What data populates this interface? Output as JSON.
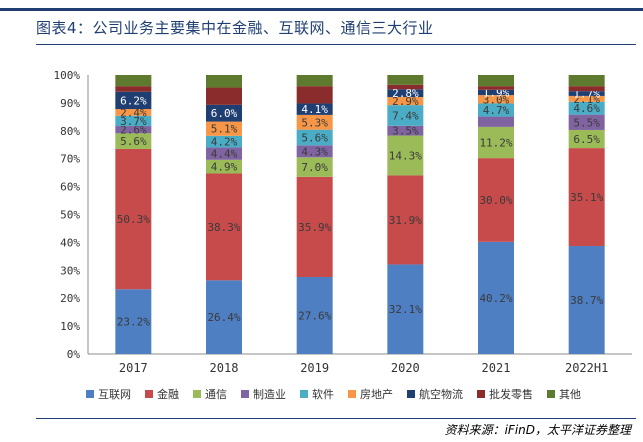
{
  "header": {
    "title": "图表4：公司业务主要集中在金融、互联网、通信三大行业"
  },
  "footer": {
    "source": "资料来源：iFinD，太平洋证券整理"
  },
  "chart_data": {
    "type": "bar",
    "stacked": true,
    "title": "图表4：公司业务主要集中在金融、互联网、通信三大行业",
    "xlabel": "",
    "ylabel": "",
    "ylim": [
      0,
      100
    ],
    "yticks": [
      "0%",
      "10%",
      "20%",
      "30%",
      "40%",
      "50%",
      "60%",
      "70%",
      "80%",
      "90%",
      "100%"
    ],
    "categories": [
      "2017",
      "2018",
      "2019",
      "2020",
      "2021",
      "2022H1"
    ],
    "legend_position": "bottom",
    "series": [
      {
        "name": "互联网",
        "color": "#4f7fc3",
        "values": [
          23.2,
          26.4,
          27.6,
          32.1,
          40.2,
          38.7
        ],
        "labels": [
          "23.2%",
          "26.4%",
          "27.6%",
          "32.1%",
          "40.2%",
          "38.7%"
        ]
      },
      {
        "name": "金融",
        "color": "#c74b4b",
        "values": [
          50.3,
          38.3,
          35.9,
          31.9,
          30.0,
          35.1
        ],
        "labels": [
          "50.3%",
          "38.3%",
          "35.9%",
          "31.9%",
          "30.0%",
          "35.1%"
        ]
      },
      {
        "name": "通信",
        "color": "#9bbb59",
        "values": [
          5.6,
          4.9,
          7.0,
          14.3,
          11.2,
          6.5
        ],
        "labels": [
          "5.6%",
          "4.9%",
          "7.0%",
          "14.3%",
          "11.2%",
          "6.5%"
        ]
      },
      {
        "name": "制造业",
        "color": "#8064a2",
        "values": [
          2.6,
          4.4,
          4.3,
          3.5,
          3.7,
          5.5
        ],
        "labels": [
          "2.6%",
          "4.4%",
          "4.3%",
          "3.5%",
          "",
          "5.5%"
        ]
      },
      {
        "name": "软件",
        "color": "#4bacc6",
        "values": [
          3.7,
          4.2,
          5.6,
          7.4,
          4.7,
          4.6
        ],
        "labels": [
          "3.7%",
          "4.2%",
          "5.6%",
          "7.4%",
          "4.7%",
          "4.6%"
        ]
      },
      {
        "name": "房地产",
        "color": "#f79646",
        "values": [
          2.4,
          5.1,
          5.3,
          2.9,
          3.0,
          2.1
        ],
        "labels": [
          "2.4%",
          "5.1%",
          "5.3%",
          "2.9%",
          "3.0%",
          "2.1%"
        ]
      },
      {
        "name": "航空物流",
        "color": "#1f3f73",
        "values": [
          6.2,
          6.0,
          4.1,
          2.8,
          1.9,
          1.7
        ],
        "labels": [
          "6.2%",
          "6.0%",
          "4.1%",
          "2.8%",
          "1.9%",
          "1.7%"
        ]
      },
      {
        "name": "批发零售",
        "color": "#8b2c2c",
        "values": [
          2.0,
          6.2,
          6.2,
          1.6,
          1.3,
          1.8
        ],
        "labels": [
          "",
          "",
          "",
          "",
          "",
          ""
        ]
      },
      {
        "name": "其他",
        "color": "#5e7a2e",
        "values": [
          4.0,
          4.5,
          4.0,
          3.5,
          4.0,
          4.0
        ],
        "labels": [
          "",
          "",
          "",
          "",
          "",
          ""
        ]
      }
    ]
  }
}
